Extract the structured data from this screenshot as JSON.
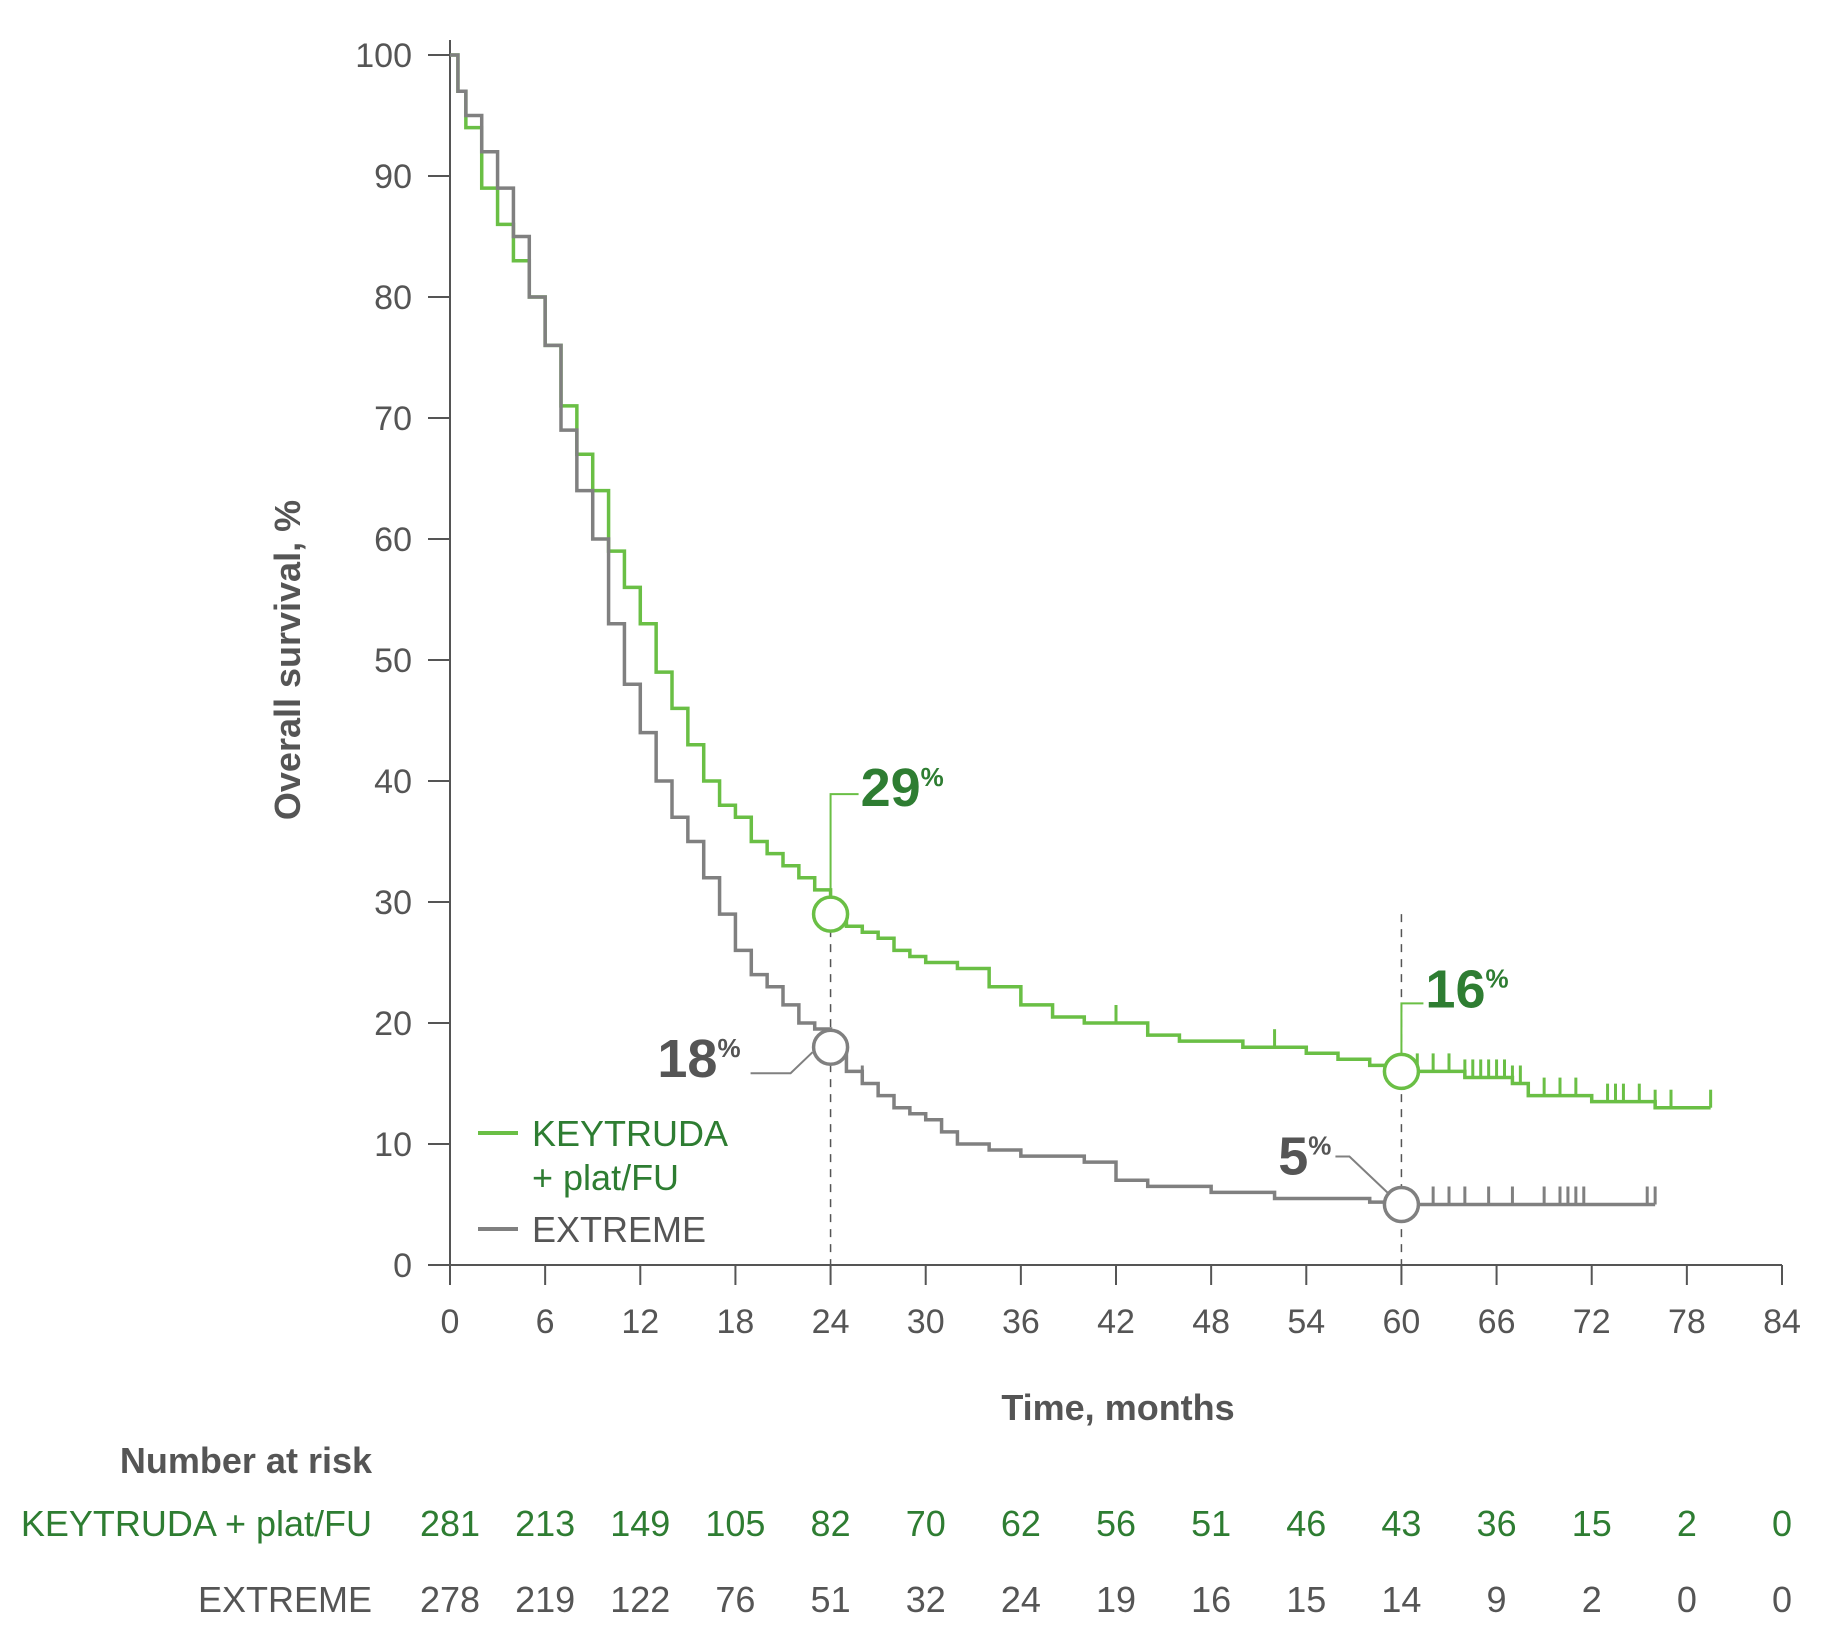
{
  "chart_data": {
    "type": "line",
    "ylabel": "Overall survival, %",
    "xlabel": "Time, months",
    "xlim": [
      0,
      84
    ],
    "ylim": [
      0,
      100
    ],
    "x_ticks": [
      "0",
      "6",
      "12",
      "18",
      "24",
      "30",
      "36",
      "42",
      "48",
      "54",
      "60",
      "66",
      "72",
      "78",
      "84"
    ],
    "y_ticks": [
      "0",
      "10",
      "20",
      "30",
      "40",
      "50",
      "60",
      "70",
      "80",
      "90",
      "100"
    ],
    "colors": {
      "keytruda": "#6abf45",
      "keytruda_text": "#2e7d32",
      "extreme": "#808080",
      "extreme_text": "#555555"
    },
    "series": [
      {
        "name": "KEYTRUDA",
        "name_line2": "+ plat/FU",
        "color": "#6abf45",
        "x": [
          0,
          0.5,
          1,
          2,
          3,
          4,
          5,
          6,
          7,
          8,
          9,
          10,
          11,
          12,
          13,
          14,
          15,
          16,
          17,
          18,
          19,
          20,
          21,
          22,
          23,
          24,
          25,
          26,
          27,
          28,
          29,
          30,
          32,
          34,
          36,
          38,
          40,
          42,
          44,
          46,
          48,
          50,
          52,
          54,
          56,
          58,
          60,
          62,
          64,
          66,
          67,
          68,
          70,
          72,
          76,
          79.5
        ],
        "y": [
          100,
          97,
          94,
          89,
          86,
          83,
          80,
          76,
          71,
          67,
          64,
          59,
          56,
          53,
          49,
          46,
          43,
          40,
          38,
          37,
          35,
          34,
          33,
          32,
          31,
          29,
          28,
          27.5,
          27,
          26,
          25.5,
          25,
          24.5,
          23,
          21.5,
          20.5,
          20,
          20,
          19,
          18.5,
          18.5,
          18,
          18,
          17.5,
          17,
          16.5,
          16,
          16,
          15.5,
          15.5,
          15,
          14,
          14,
          13.5,
          13,
          13
        ],
        "censor_x": [
          42,
          52,
          61,
          62,
          63,
          64,
          64.5,
          65,
          65.5,
          66,
          66.5,
          67,
          67.5,
          69,
          70,
          71,
          73,
          73.5,
          74,
          75,
          76,
          77,
          79.5
        ]
      },
      {
        "name": "EXTREME",
        "color": "#808080",
        "x": [
          0,
          0.5,
          1,
          2,
          3,
          4,
          5,
          6,
          7,
          8,
          9,
          10,
          11,
          12,
          13,
          14,
          15,
          16,
          17,
          18,
          19,
          20,
          21,
          22,
          23,
          24,
          25,
          26,
          27,
          28,
          29,
          30,
          31,
          32,
          34,
          36,
          38,
          40,
          42,
          44,
          46,
          48,
          50,
          52,
          54,
          56,
          58,
          60,
          62,
          66,
          70,
          74,
          76
        ],
        "y": [
          100,
          97,
          95,
          92,
          89,
          85,
          80,
          76,
          69,
          64,
          60,
          53,
          48,
          44,
          40,
          37,
          35,
          32,
          29,
          26,
          24,
          23,
          21.5,
          20,
          19.5,
          18,
          16,
          15,
          14,
          13,
          12.5,
          12,
          11,
          10,
          9.5,
          9,
          9,
          8.5,
          7,
          6.5,
          6.5,
          6,
          6,
          5.5,
          5.5,
          5.5,
          5.2,
          5,
          5,
          5,
          5,
          5,
          5
        ],
        "censor_x": [
          26,
          62,
          63,
          64,
          65.5,
          67,
          69,
          70,
          70.5,
          71,
          71.5,
          75.5,
          76
        ]
      }
    ],
    "annotations": [
      {
        "value": "29",
        "suffix": "%",
        "x": 24,
        "y": 29,
        "series": "KEYTRUDA"
      },
      {
        "value": "18",
        "suffix": "%",
        "x": 24,
        "y": 18,
        "series": "EXTREME"
      },
      {
        "value": "16",
        "suffix": "%",
        "x": 60,
        "y": 16,
        "series": "KEYTRUDA"
      },
      {
        "value": "5",
        "suffix": "%",
        "x": 60,
        "y": 5,
        "series": "EXTREME"
      }
    ],
    "risk_table": {
      "title": "Number at risk",
      "rows": [
        {
          "label": "KEYTRUDA + plat/FU",
          "values": [
            "281",
            "213",
            "149",
            "105",
            "82",
            "70",
            "62",
            "56",
            "51",
            "46",
            "43",
            "36",
            "15",
            "2",
            "0"
          ]
        },
        {
          "label": "EXTREME",
          "values": [
            "278",
            "219",
            "122",
            "76",
            "51",
            "32",
            "24",
            "19",
            "16",
            "15",
            "14",
            "9",
            "2",
            "0",
            "0"
          ]
        }
      ]
    }
  }
}
